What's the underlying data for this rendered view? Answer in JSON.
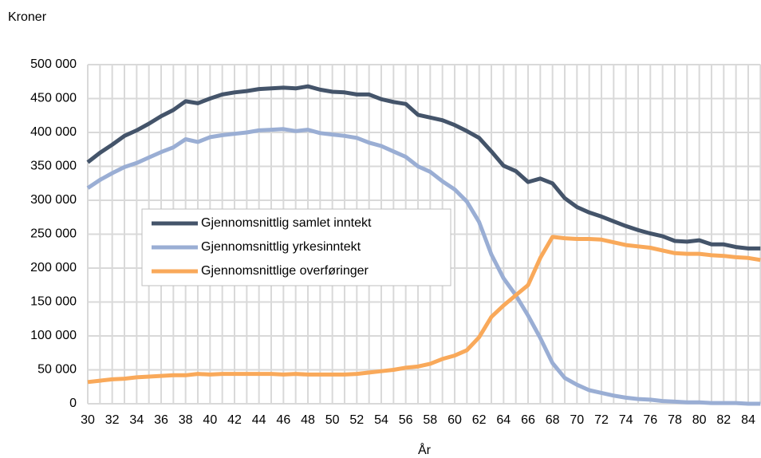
{
  "chart_data": {
    "type": "line",
    "y_label": "Kroner",
    "x_label": "År",
    "x": [
      30,
      31,
      32,
      33,
      34,
      35,
      36,
      37,
      38,
      39,
      40,
      41,
      42,
      43,
      44,
      45,
      46,
      47,
      48,
      49,
      50,
      51,
      52,
      53,
      54,
      55,
      56,
      57,
      58,
      59,
      60,
      61,
      62,
      63,
      64,
      65,
      66,
      67,
      68,
      69,
      70,
      71,
      72,
      73,
      74,
      75,
      76,
      77,
      78,
      79,
      80,
      81,
      82,
      83,
      84,
      85
    ],
    "series": [
      {
        "name": "Gjennomsnittlig samlet inntekt",
        "color": "#44546a",
        "values": [
          356000,
          370000,
          382000,
          395000,
          403000,
          413000,
          424000,
          433000,
          446000,
          443000,
          450000,
          456000,
          459000,
          461000,
          464000,
          465000,
          466000,
          465000,
          468000,
          463000,
          460000,
          459000,
          456000,
          456000,
          449000,
          445000,
          442000,
          426000,
          422000,
          418000,
          411000,
          402000,
          392000,
          372000,
          351000,
          343000,
          327000,
          332000,
          325000,
          303000,
          290000,
          282000,
          276000,
          269000,
          262000,
          256000,
          251000,
          247000,
          240000,
          239000,
          241000,
          235000,
          235000,
          231000,
          229000,
          229000
        ]
      },
      {
        "name": "Gjennomsnittlig yrkesinntekt",
        "color": "#9aaed4",
        "values": [
          318000,
          330000,
          340000,
          349000,
          355000,
          363000,
          371000,
          378000,
          390000,
          386000,
          393000,
          396000,
          398000,
          400000,
          403000,
          404000,
          405000,
          402000,
          404000,
          399000,
          397000,
          395000,
          392000,
          385000,
          380000,
          372000,
          364000,
          350000,
          342000,
          328000,
          316000,
          298000,
          268000,
          220000,
          185000,
          160000,
          130000,
          97000,
          60000,
          38000,
          28000,
          20000,
          16000,
          12000,
          9000,
          7000,
          6000,
          4000,
          3000,
          2000,
          2000,
          1000,
          1000,
          1000,
          0,
          0
        ]
      },
      {
        "name": "Gjennomsnittlige overføringer",
        "color": "#f9a95a",
        "values": [
          32000,
          34000,
          36000,
          37000,
          39000,
          40000,
          41000,
          42000,
          42000,
          44000,
          43000,
          44000,
          44000,
          44000,
          44000,
          44000,
          43000,
          44000,
          43000,
          43000,
          43000,
          43000,
          44000,
          46000,
          48000,
          50000,
          53000,
          55000,
          59000,
          66000,
          71000,
          79000,
          98000,
          128000,
          145000,
          160000,
          175000,
          215000,
          246000,
          244000,
          243000,
          243000,
          242000,
          238000,
          234000,
          232000,
          230000,
          226000,
          222000,
          221000,
          221000,
          219000,
          218000,
          216000,
          215000,
          212000
        ]
      }
    ],
    "xlim": [
      30,
      85
    ],
    "xticks": [
      30,
      32,
      34,
      36,
      38,
      40,
      42,
      44,
      46,
      48,
      50,
      52,
      54,
      56,
      58,
      60,
      62,
      64,
      66,
      68,
      70,
      72,
      74,
      76,
      78,
      80,
      82,
      84
    ],
    "xminorticks": [
      31,
      33,
      35,
      37,
      39,
      41,
      43,
      45,
      47,
      49,
      51,
      53,
      55,
      57,
      59,
      61,
      63,
      65,
      67,
      69,
      71,
      73,
      75,
      77,
      79,
      81,
      83,
      85
    ],
    "ylim": [
      0,
      500000
    ],
    "yticks": [
      0,
      {
        "value": 50000,
        "label": "50 000"
      },
      {
        "value": 100000,
        "label": "100 000"
      },
      {
        "value": 150000,
        "label": "150 000"
      },
      {
        "value": 200000,
        "label": "200 000"
      },
      {
        "value": 250000,
        "label": "250 000"
      },
      {
        "value": 300000,
        "label": "300 000"
      },
      {
        "value": 350000,
        "label": "350 000"
      },
      {
        "value": 400000,
        "label": "400 000"
      },
      {
        "value": 450000,
        "label": "450 000"
      },
      {
        "value": 500000,
        "label": "500 000"
      }
    ],
    "grid": true
  }
}
